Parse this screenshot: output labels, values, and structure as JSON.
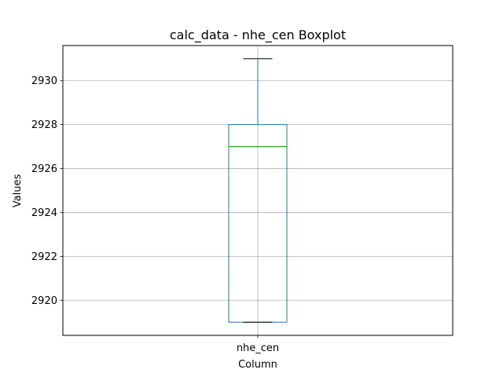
{
  "chart_data": {
    "type": "boxplot",
    "title": "calc_data - nhe_cen Boxplot",
    "xlabel": "Column",
    "ylabel": "Values",
    "categories": [
      "nhe_cen"
    ],
    "boxes": [
      {
        "category": "nhe_cen",
        "whisker_low": 2919,
        "q1": 2919,
        "median": 2927,
        "q3": 2928,
        "whisker_high": 2931
      }
    ],
    "ylim": [
      2918.4,
      2931.6
    ],
    "yticks": [
      2920,
      2922,
      2924,
      2926,
      2928,
      2930
    ],
    "grid": true,
    "colors": {
      "box": "#1f77b4",
      "median": "#2ca02c",
      "cap": "#000000",
      "grid": "#b0b0b0",
      "frame": "#000000"
    }
  }
}
